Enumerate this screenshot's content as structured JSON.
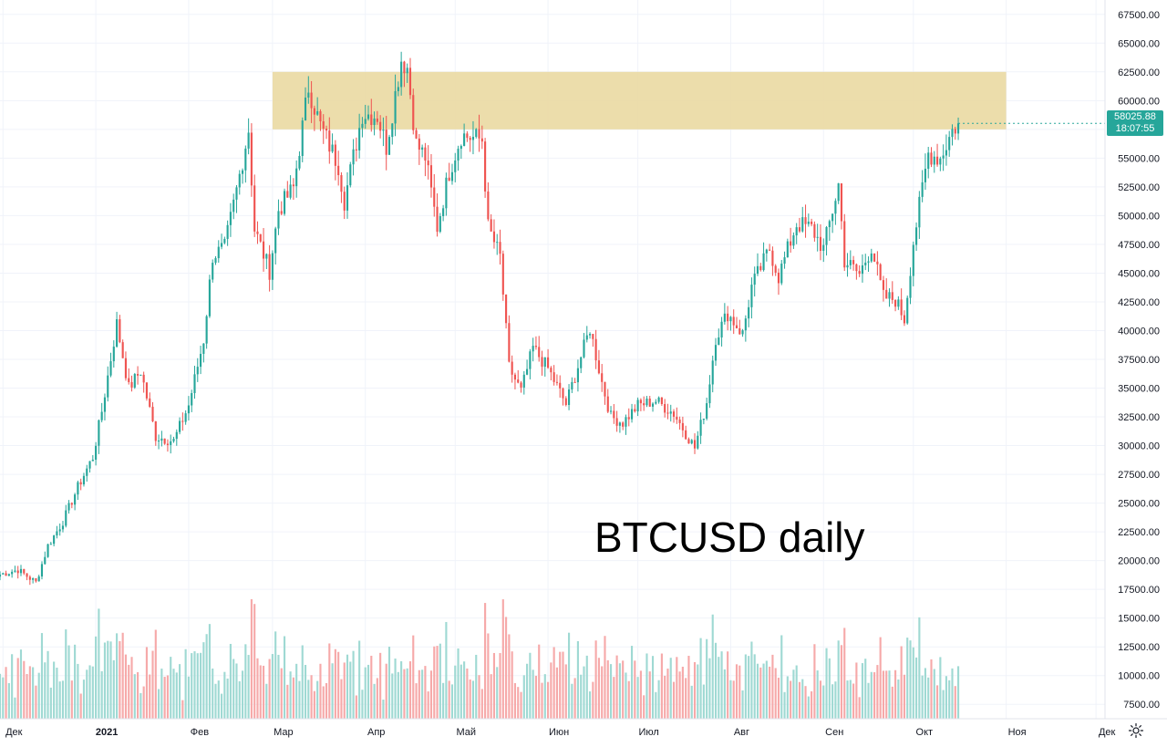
{
  "chart_data": {
    "type": "candlestick",
    "title": "BTCUSD daily",
    "symbol": "BTCUSD",
    "interval": "daily",
    "ylim": [
      6250,
      68750
    ],
    "y_ticks": [
      7500,
      10000,
      12500,
      15000,
      17500,
      20000,
      22500,
      25000,
      27500,
      30000,
      32500,
      35000,
      37500,
      40000,
      42500,
      45000,
      47500,
      50000,
      52500,
      55000,
      57500,
      60000,
      62500,
      65000,
      67500
    ],
    "y_tick_labels": [
      "7500.00",
      "10000.00",
      "12500.00",
      "15000.00",
      "17500.00",
      "20000.00",
      "22500.00",
      "25000.00",
      "27500.00",
      "30000.00",
      "32500.00",
      "35000.00",
      "37500.00",
      "40000.00",
      "42500.00",
      "45000.00",
      "47500.00",
      "50000.00",
      "52500.00",
      "55000.00",
      "57500.00",
      "60000.00",
      "62500.00",
      "65000.00",
      "67500.00"
    ],
    "x_range": [
      "2020-11-30",
      "2021-12-04"
    ],
    "x_ticks": [
      {
        "date": "2020-12-01",
        "label": "Дек"
      },
      {
        "date": "2021-01-01",
        "label": "2021",
        "bold": true
      },
      {
        "date": "2021-02-01",
        "label": "Фев"
      },
      {
        "date": "2021-03-01",
        "label": "Мар"
      },
      {
        "date": "2021-04-01",
        "label": "Апр"
      },
      {
        "date": "2021-05-01",
        "label": "Май"
      },
      {
        "date": "2021-06-01",
        "label": "Июн"
      },
      {
        "date": "2021-07-01",
        "label": "Июл"
      },
      {
        "date": "2021-08-01",
        "label": "Авг"
      },
      {
        "date": "2021-09-01",
        "label": "Сен"
      },
      {
        "date": "2021-10-01",
        "label": "Окт"
      },
      {
        "date": "2021-11-01",
        "label": "Ноя"
      },
      {
        "date": "2021-12-01",
        "label": "Дек"
      }
    ],
    "grid": true,
    "last_price": {
      "value": 58025.88,
      "label": "58025.88",
      "countdown": "18:07:55",
      "color": "#26a69a"
    },
    "resistance_zone": {
      "x_start": "2021-03-01",
      "x_end": "2021-11-01",
      "y_low": 57500,
      "y_high": 62500,
      "color": "#ead9a2"
    },
    "colors": {
      "up": "#26a69a",
      "down": "#ef5350",
      "volume_up": "#9fd9d3",
      "volume_down": "#f6a9a9",
      "grid": "#f0f3fa",
      "axis_text": "#131722"
    },
    "price_path": [
      [
        "2020-11-30",
        18800
      ],
      [
        "2020-12-06",
        19200
      ],
      [
        "2020-12-12",
        18100
      ],
      [
        "2020-12-16",
        21300
      ],
      [
        "2020-12-21",
        23400
      ],
      [
        "2020-12-26",
        26400
      ],
      [
        "2020-12-31",
        29000
      ],
      [
        "2021-01-03",
        33000
      ],
      [
        "2021-01-08",
        40600
      ],
      [
        "2021-01-12",
        35000
      ],
      [
        "2021-01-16",
        36500
      ],
      [
        "2021-01-21",
        30800
      ],
      [
        "2021-01-27",
        30400
      ],
      [
        "2021-02-01",
        33500
      ],
      [
        "2021-02-06",
        39200
      ],
      [
        "2021-02-09",
        46500
      ],
      [
        "2021-02-13",
        47200
      ],
      [
        "2021-02-17",
        52200
      ],
      [
        "2021-02-21",
        57500
      ],
      [
        "2021-02-23",
        48800
      ],
      [
        "2021-02-28",
        45200
      ],
      [
        "2021-03-03",
        50500
      ],
      [
        "2021-03-08",
        52400
      ],
      [
        "2021-03-13",
        61200
      ],
      [
        "2021-03-17",
        57800
      ],
      [
        "2021-03-23",
        54400
      ],
      [
        "2021-03-25",
        51300
      ],
      [
        "2021-03-31",
        58900
      ],
      [
        "2021-04-05",
        58700
      ],
      [
        "2021-04-08",
        56000
      ],
      [
        "2021-04-13",
        63600
      ],
      [
        "2021-04-15",
        62900
      ],
      [
        "2021-04-18",
        56200
      ],
      [
        "2021-04-21",
        55100
      ],
      [
        "2021-04-25",
        49000
      ],
      [
        "2021-04-29",
        53800
      ],
      [
        "2021-05-03",
        57000
      ],
      [
        "2021-05-10",
        56600
      ],
      [
        "2021-05-12",
        49000
      ],
      [
        "2021-05-16",
        46400
      ],
      [
        "2021-05-19",
        36800
      ],
      [
        "2021-05-23",
        34700
      ],
      [
        "2021-05-27",
        38500
      ],
      [
        "2021-06-01",
        36700
      ],
      [
        "2021-06-07",
        33600
      ],
      [
        "2021-06-15",
        40200
      ],
      [
        "2021-06-19",
        35500
      ],
      [
        "2021-06-22",
        32500
      ],
      [
        "2021-06-26",
        32000
      ],
      [
        "2021-07-01",
        33500
      ],
      [
        "2021-07-07",
        33900
      ],
      [
        "2021-07-13",
        32800
      ],
      [
        "2021-07-20",
        29800
      ],
      [
        "2021-07-24",
        33800
      ],
      [
        "2021-07-27",
        39400
      ],
      [
        "2021-07-31",
        41500
      ],
      [
        "2021-08-05",
        39700
      ],
      [
        "2021-08-08",
        43800
      ],
      [
        "2021-08-14",
        47100
      ],
      [
        "2021-08-17",
        44700
      ],
      [
        "2021-08-23",
        49300
      ],
      [
        "2021-08-28",
        48900
      ],
      [
        "2021-09-01",
        47100
      ],
      [
        "2021-09-06",
        52700
      ],
      [
        "2021-09-08",
        46100
      ],
      [
        "2021-09-13",
        44900
      ],
      [
        "2021-09-17",
        47300
      ],
      [
        "2021-09-21",
        42900
      ],
      [
        "2021-09-25",
        42700
      ],
      [
        "2021-09-28",
        41000
      ],
      [
        "2021-10-01",
        47700
      ],
      [
        "2021-10-06",
        55400
      ],
      [
        "2021-10-10",
        55000
      ],
      [
        "2021-10-14",
        57400
      ],
      [
        "2021-10-16",
        58025.88
      ]
    ]
  },
  "ui": {
    "watermark_title": "BTCUSD daily",
    "settings_icon": "gear-icon"
  }
}
